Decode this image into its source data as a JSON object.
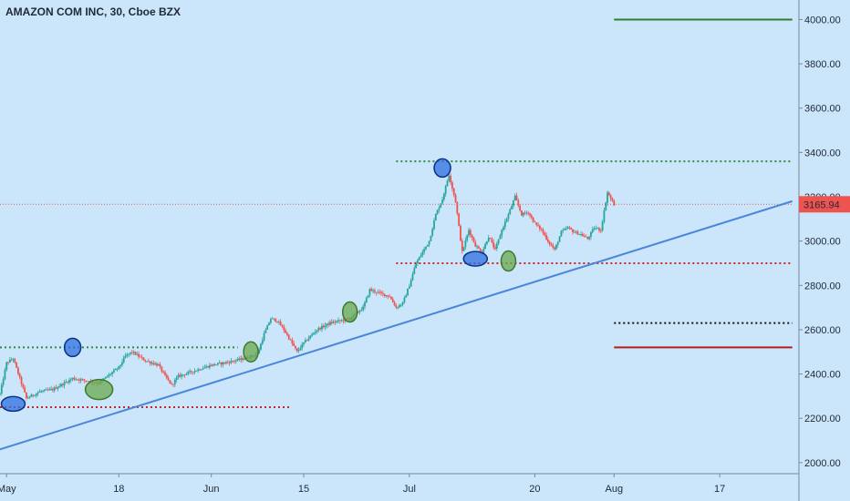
{
  "chart_data": {
    "type": "candlestick",
    "title": "AMAZON COM INC, 30, Cboe BZX",
    "price_axis": {
      "ylim": [
        1950,
        4080
      ],
      "ticks": [
        "2000.00",
        "2200.00",
        "2400.00",
        "2600.00",
        "2800.00",
        "3000.00",
        "3200.00",
        "3400.00",
        "3600.00",
        "3800.00",
        "4000.00"
      ]
    },
    "time_axis": {
      "ticks": [
        "May",
        "18",
        "Jun",
        "15",
        "Jul",
        "20",
        "Aug",
        "17"
      ],
      "tick_days": [
        0,
        17,
        31,
        45,
        61,
        80,
        92,
        108
      ],
      "xlim_days": [
        -1,
        120
      ]
    },
    "last_price": {
      "label": "3165.94",
      "value": 3165.94
    },
    "price_path": [
      [
        -1,
        2310
      ],
      [
        0,
        2450
      ],
      [
        1,
        2470
      ],
      [
        3,
        2290
      ],
      [
        5,
        2320
      ],
      [
        7,
        2330
      ],
      [
        10,
        2380
      ],
      [
        14,
        2360
      ],
      [
        17,
        2430
      ],
      [
        18,
        2480
      ],
      [
        19,
        2500
      ],
      [
        21,
        2460
      ],
      [
        23,
        2440
      ],
      [
        24,
        2390
      ],
      [
        25,
        2350
      ],
      [
        26,
        2390
      ],
      [
        28,
        2410
      ],
      [
        31,
        2440
      ],
      [
        33,
        2450
      ],
      [
        36,
        2470
      ],
      [
        38,
        2490
      ],
      [
        39,
        2580
      ],
      [
        40,
        2650
      ],
      [
        41,
        2640
      ],
      [
        42,
        2600
      ],
      [
        43,
        2550
      ],
      [
        44,
        2500
      ],
      [
        45,
        2540
      ],
      [
        47,
        2600
      ],
      [
        49,
        2630
      ],
      [
        52,
        2650
      ],
      [
        54,
        2700
      ],
      [
        55,
        2780
      ],
      [
        57,
        2760
      ],
      [
        58,
        2750
      ],
      [
        59,
        2700
      ],
      [
        60,
        2720
      ],
      [
        61,
        2800
      ],
      [
        62,
        2900
      ],
      [
        64,
        3000
      ],
      [
        65,
        3120
      ],
      [
        66,
        3190
      ],
      [
        67,
        3300
      ],
      [
        68,
        3180
      ],
      [
        69,
        2950
      ],
      [
        70,
        3050
      ],
      [
        71,
        2980
      ],
      [
        72,
        2950
      ],
      [
        73,
        3020
      ],
      [
        74,
        2960
      ],
      [
        75,
        3050
      ],
      [
        76,
        3120
      ],
      [
        77,
        3200
      ],
      [
        78,
        3120
      ],
      [
        79,
        3130
      ],
      [
        80,
        3080
      ],
      [
        81,
        3050
      ],
      [
        82,
        3000
      ],
      [
        83,
        2960
      ],
      [
        84,
        3040
      ],
      [
        85,
        3060
      ],
      [
        86,
        3040
      ],
      [
        87,
        3030
      ],
      [
        88,
        3010
      ],
      [
        89,
        3060
      ],
      [
        90,
        3050
      ],
      [
        91,
        3220
      ],
      [
        92,
        3165
      ]
    ],
    "trend_lines": [
      {
        "name": "rising-support",
        "color": "#4a86d9",
        "from": [
          -1,
          2060
        ],
        "to": [
          119,
          3180
        ]
      }
    ],
    "levels": [
      {
        "value": 2520,
        "from_day": -1,
        "to_day": 35,
        "color": "#2e8b3e",
        "style": "dotted"
      },
      {
        "value": 2250,
        "from_day": -1,
        "to_day": 43,
        "color": "#c62828",
        "style": "dotted"
      },
      {
        "value": 3360,
        "from_day": 59,
        "to_day": 119,
        "color": "#2e8b3e",
        "style": "dotted"
      },
      {
        "value": 2900,
        "from_day": 59,
        "to_day": 119,
        "color": "#c62828",
        "style": "dotted"
      },
      {
        "value": 3165.94,
        "from_day": -1,
        "to_day": 119,
        "color": "#e05a5a",
        "style": "dotted-fine"
      },
      {
        "value": 2630,
        "from_day": 92,
        "to_day": 119,
        "color": "#111111",
        "style": "dotted"
      },
      {
        "value": 2520,
        "from_day": 92,
        "to_day": 119,
        "color": "#b71c1c",
        "style": "solid"
      },
      {
        "value": 4000,
        "from_day": 92,
        "to_day": 119,
        "color": "#2e7d32",
        "style": "solid"
      }
    ],
    "markers": [
      {
        "kind": "high",
        "day": 10,
        "price": 2520,
        "color": "#2f6fe0"
      },
      {
        "kind": "high",
        "day": 66,
        "price": 3330,
        "color": "#2f6fe0"
      },
      {
        "kind": "low",
        "day": 1,
        "price": 2265,
        "color": "#2f6fe0"
      },
      {
        "kind": "low",
        "day": 71,
        "price": 2920,
        "color": "#2f6fe0"
      },
      {
        "kind": "touch",
        "day": 14,
        "price": 2330,
        "color": "#6aa84f"
      },
      {
        "kind": "touch",
        "day": 37,
        "price": 2500,
        "color": "#6aa84f"
      },
      {
        "kind": "touch",
        "day": 52,
        "price": 2680,
        "color": "#6aa84f"
      },
      {
        "kind": "touch",
        "day": 76,
        "price": 2910,
        "color": "#6aa84f"
      }
    ],
    "colors": {
      "background": "#cbe6fb",
      "up": "#26a69a",
      "down": "#ef5350",
      "axis_text": "#1f2a36",
      "price_label_bg": "#ef5350"
    }
  }
}
